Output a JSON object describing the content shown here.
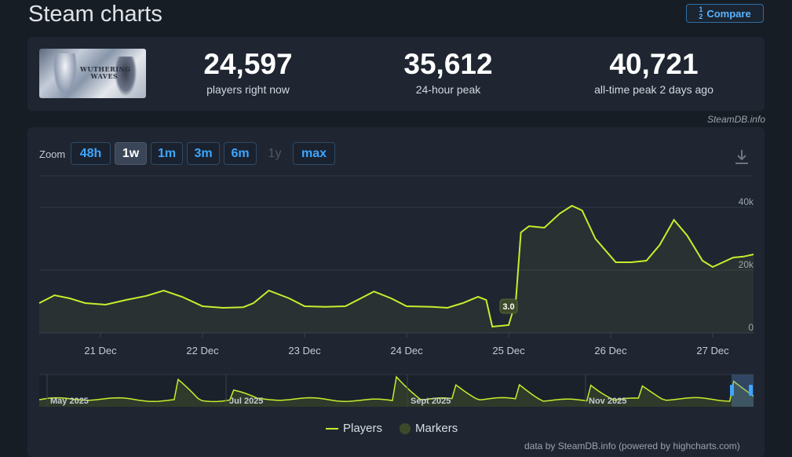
{
  "page": {
    "title": "Steam charts",
    "compare_label": "Compare"
  },
  "stats": {
    "thumbnail_text": "WUTHERING WAVES",
    "players_now": {
      "value": "24,597",
      "label": "players right now"
    },
    "peak_24h": {
      "value": "35,612",
      "label": "24-hour peak"
    },
    "all_time_peak": {
      "value": "40,721",
      "label": "all-time peak 2 days ago"
    },
    "credit": "SteamDB.info"
  },
  "zoom": {
    "label": "Zoom",
    "buttons": [
      {
        "label": "48h",
        "state": "normal"
      },
      {
        "label": "1w",
        "state": "active"
      },
      {
        "label": "1m",
        "state": "normal"
      },
      {
        "label": "3m",
        "state": "normal"
      },
      {
        "label": "6m",
        "state": "normal"
      },
      {
        "label": "1y",
        "state": "disabled"
      },
      {
        "label": "max",
        "state": "normal"
      }
    ]
  },
  "chart_data": {
    "type": "area",
    "ylim": [
      0,
      50000
    ],
    "y_ticks": [
      0,
      20000,
      40000
    ],
    "y_tick_labels": [
      "0",
      "20k",
      "40k"
    ],
    "x_range_days": [
      20.4,
      27.4
    ],
    "x_ticks": [
      {
        "day": 21,
        "label": "21 Dec"
      },
      {
        "day": 22,
        "label": "22 Dec"
      },
      {
        "day": 23,
        "label": "23 Dec"
      },
      {
        "day": 24,
        "label": "24 Dec"
      },
      {
        "day": 25,
        "label": "25 Dec"
      },
      {
        "day": 26,
        "label": "26 Dec"
      },
      {
        "day": 27,
        "label": "27 Dec"
      }
    ],
    "series": [
      {
        "name": "Players",
        "color": "#c6ee2c",
        "points": [
          [
            20.4,
            9500
          ],
          [
            20.55,
            12000
          ],
          [
            20.7,
            11000
          ],
          [
            20.85,
            9500
          ],
          [
            21.05,
            9000
          ],
          [
            21.25,
            10500
          ],
          [
            21.45,
            11800
          ],
          [
            21.62,
            13500
          ],
          [
            21.8,
            11500
          ],
          [
            22.0,
            8500
          ],
          [
            22.2,
            8000
          ],
          [
            22.4,
            8200
          ],
          [
            22.5,
            9500
          ],
          [
            22.65,
            13500
          ],
          [
            22.85,
            11000
          ],
          [
            23.0,
            8500
          ],
          [
            23.2,
            8300
          ],
          [
            23.4,
            8500
          ],
          [
            23.55,
            11000
          ],
          [
            23.68,
            13200
          ],
          [
            23.85,
            11000
          ],
          [
            24.0,
            8500
          ],
          [
            24.25,
            8300
          ],
          [
            24.4,
            8000
          ],
          [
            24.55,
            9500
          ],
          [
            24.7,
            11500
          ],
          [
            24.78,
            10500
          ],
          [
            24.84,
            2000
          ],
          [
            25.0,
            2500
          ],
          [
            25.07,
            10000
          ],
          [
            25.12,
            32000
          ],
          [
            25.2,
            34000
          ],
          [
            25.35,
            33500
          ],
          [
            25.5,
            38000
          ],
          [
            25.62,
            40500
          ],
          [
            25.72,
            39000
          ],
          [
            25.85,
            30000
          ],
          [
            26.05,
            22500
          ],
          [
            26.2,
            22500
          ],
          [
            26.35,
            23000
          ],
          [
            26.48,
            28000
          ],
          [
            26.62,
            36000
          ],
          [
            26.75,
            31000
          ],
          [
            26.9,
            23000
          ],
          [
            27.0,
            21000
          ],
          [
            27.2,
            24000
          ],
          [
            27.3,
            24300
          ],
          [
            27.4,
            25000
          ]
        ]
      }
    ],
    "markers": [
      {
        "day": 25.0,
        "value": 8500,
        "label": "3.0"
      }
    ],
    "navigator": {
      "labels": [
        "May 2025",
        "Jul 2025",
        "Sept 2025",
        "Nov 2025"
      ]
    },
    "legend": [
      "Players",
      "Markers"
    ],
    "legend_placement": "bottom-center"
  },
  "footer": {
    "credit": "data by SteamDB.info (powered by highcharts.com)"
  }
}
